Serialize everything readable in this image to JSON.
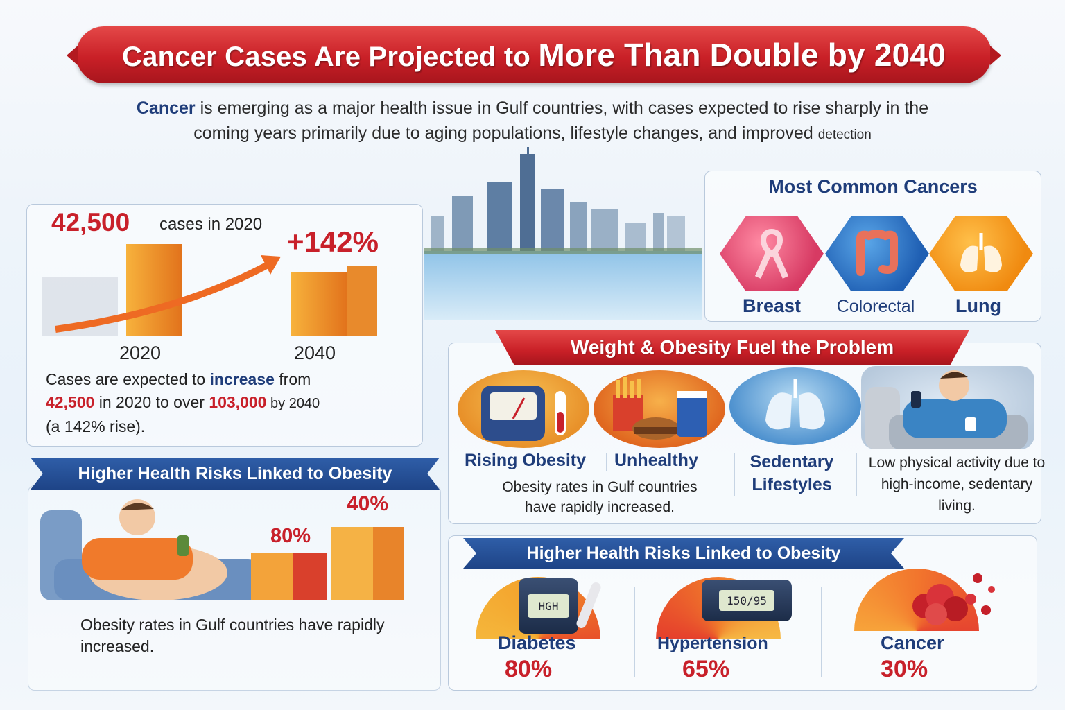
{
  "title": {
    "part1": "Cancer Cases Are Projected to ",
    "part2": "More Than Double by ",
    "year": "2040"
  },
  "intro": {
    "highlight": "Cancer",
    "text1": " is emerging as a major health issue in Gulf countries, with cases expected to rise sharply in the",
    "text2": "coming years primarily due to aging populations, lifestyle changes, and improved ",
    "tail": "detection"
  },
  "growth": {
    "cases_2020": "42,500",
    "cases_2020_label": "cases in 2020",
    "increase_pct": "+142%",
    "year_start": "2020",
    "year_end": "2040",
    "body_a": "Cases are expected to ",
    "body_increase": "increase",
    "body_b": " from",
    "body_val1": "42,500",
    "body_c": " in 2020 to over ",
    "body_val2": "103,000",
    "body_d": " by 2040",
    "body_e": "(a 142% rise)."
  },
  "obesity_left": {
    "ribbon": "Higher Health Risks Linked to Obesity",
    "pct_a": "80%",
    "pct_b": "40%",
    "text": "Obesity rates in Gulf countries have rapidly increased."
  },
  "cancers": {
    "heading": "Most Common Cancers",
    "items": [
      {
        "label": "Breast",
        "icon": "ribbon-icon"
      },
      {
        "label": "Colorectal",
        "icon": "colon-icon"
      },
      {
        "label": "Lung",
        "icon": "lungs-icon"
      }
    ]
  },
  "weight": {
    "banner": "Weight & Obesity Fuel the Problem",
    "labels": [
      "Rising Obesity",
      "Unhealthy",
      "Sedentary Lifestyles"
    ],
    "desc1": "Obesity rates in Gulf countries have rapidly increased.",
    "desc2": "Low physical activity due to high-income, sedentary living."
  },
  "risks": {
    "ribbon": "Higher Health Risks Linked to Obesity",
    "items": [
      {
        "name": "Diabetes",
        "pct": "80%",
        "device_text": "HGH"
      },
      {
        "name": "Hypertension",
        "pct": "65%",
        "device_text": "150/95"
      },
      {
        "name": "Cancer",
        "pct": "30%"
      }
    ]
  },
  "colors": {
    "accent_red": "#c8202a",
    "navy": "#1f3d7a",
    "orange": "#f08a10"
  }
}
